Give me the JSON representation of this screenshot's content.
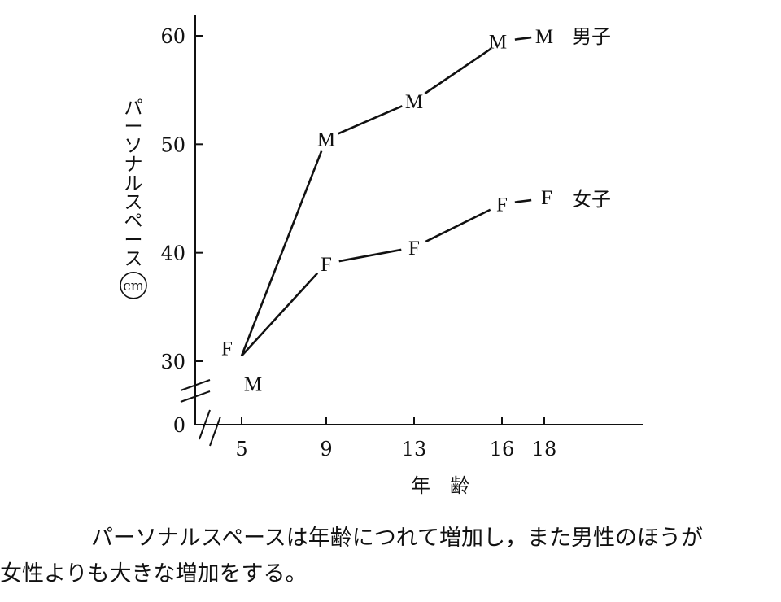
{
  "chart_data": {
    "type": "line",
    "x": [
      5,
      9,
      13,
      16,
      18
    ],
    "series": [
      {
        "name": "男子",
        "marker": "M",
        "values": [
          30.5,
          50.5,
          54,
          59.5,
          60
        ]
      },
      {
        "name": "女子",
        "marker": "F",
        "values": [
          30.5,
          39,
          40.5,
          44.5,
          45
        ]
      }
    ],
    "xticks": [
      "5",
      "9",
      "13",
      "16",
      "18"
    ],
    "yticks": [
      "0",
      "30",
      "40",
      "50",
      "60"
    ],
    "ylim": [
      30,
      60
    ],
    "axis_break": true,
    "xlabel": "年　齢",
    "ylabel": "パーソナルスペース",
    "yunit": "cm",
    "grid": false
  },
  "caption": {
    "line1": "パーソナルスペースは年齢につれて増加し，また男性のほうが",
    "line2": "女性よりも大きな増加をする。"
  }
}
